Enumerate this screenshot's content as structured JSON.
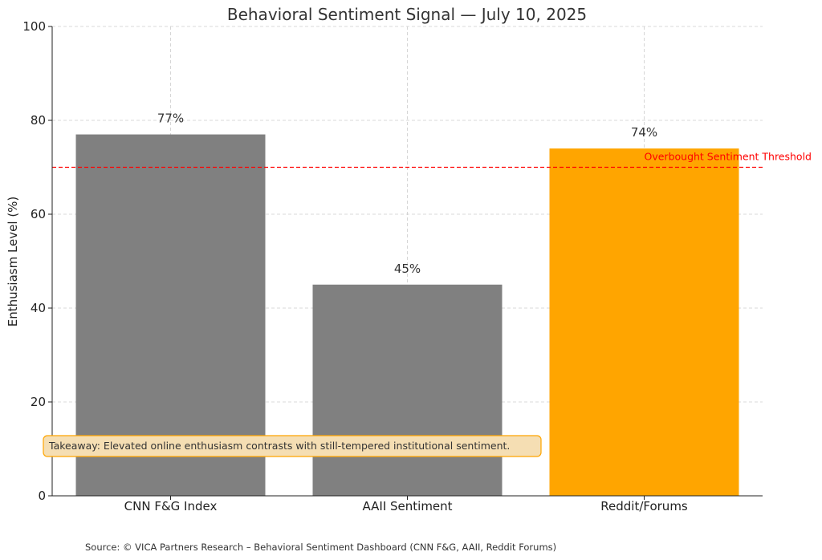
{
  "chart_data": {
    "type": "bar",
    "title": "Behavioral Sentiment Signal — July 10, 2025",
    "xlabel": "",
    "ylabel": "Enthusiasm Level (%)",
    "categories": [
      "CNN F&G Index",
      "AAII Sentiment",
      "Reddit/Forums"
    ],
    "values": [
      77,
      45,
      74
    ],
    "value_labels": [
      "77%",
      "45%",
      "74%"
    ],
    "bar_colors": [
      "#808080",
      "#808080",
      "#ffa500"
    ],
    "ylim": [
      0,
      100
    ],
    "yticks": [
      0,
      20,
      40,
      60,
      80,
      100
    ],
    "ytick_labels": [
      "0",
      "20",
      "40",
      "60",
      "80",
      "100"
    ],
    "grid": true,
    "threshold": {
      "value": 70,
      "label": "Overbought Sentiment Threshold",
      "color": "#ff0000",
      "style": "dashed"
    },
    "annotation": {
      "text": "Takeaway: Elevated online enthusiasm contrasts with still-tempered institutional sentiment.",
      "background": "#f5deb3",
      "border": "#ffa500"
    },
    "source": "Source: © VICA Partners Research – Behavioral Sentiment Dashboard (CNN F&G, AAII, Reddit Forums)"
  }
}
